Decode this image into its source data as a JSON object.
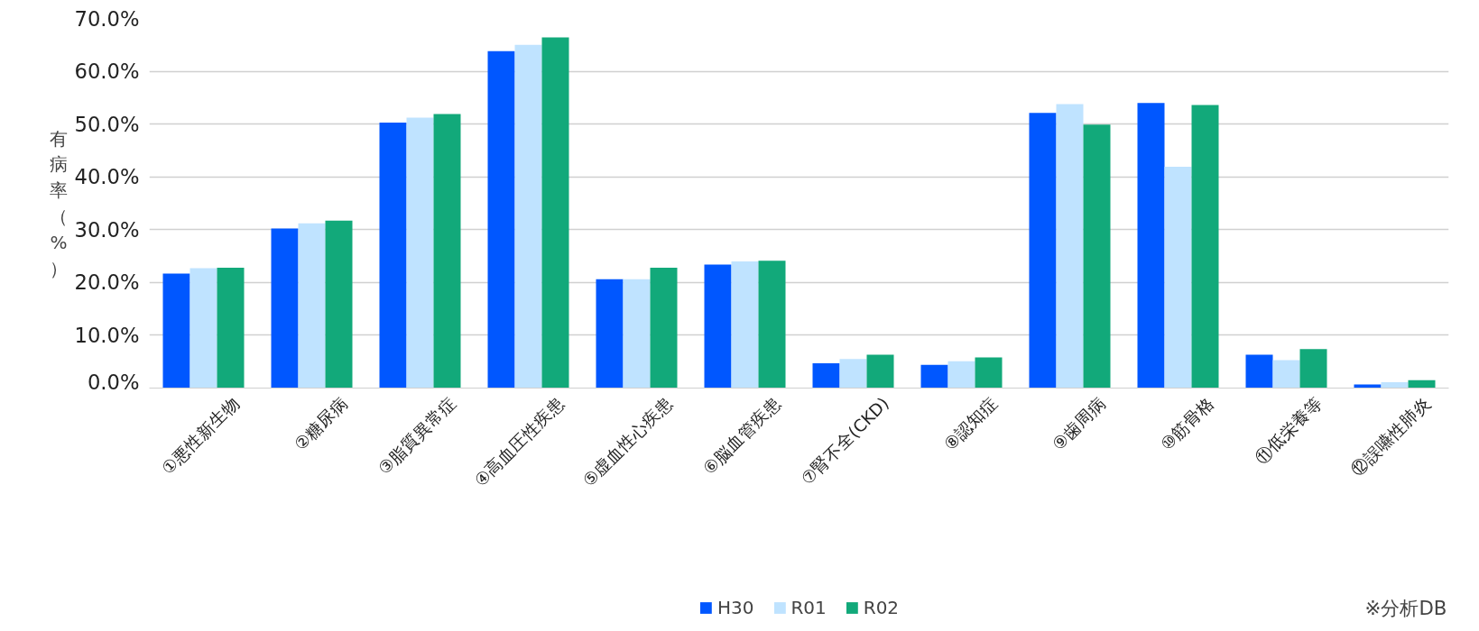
{
  "chart_data": {
    "type": "bar",
    "ylabel": "有病率（%）",
    "categories": [
      "①悪性新生物",
      "②糖尿病",
      "③脂質異常症",
      "④高血圧性疾患",
      "⑤虚血性心疾患",
      "⑥脳血管疾患",
      "⑦腎不全(CKD)",
      "⑧認知症",
      "⑨歯周病",
      "⑩筋骨格",
      "⑪低栄養等",
      "⑫誤嚥性肺炎"
    ],
    "series": [
      {
        "name": "H30",
        "color": "#0057ff",
        "values": [
          21.7,
          30.2,
          50.3,
          63.8,
          20.6,
          23.4,
          4.7,
          4.4,
          52.1,
          54.0,
          6.3,
          0.7
        ]
      },
      {
        "name": "R01",
        "color": "#bfe3ff",
        "values": [
          22.7,
          31.2,
          51.2,
          65.0,
          20.6,
          24.0,
          5.5,
          5.1,
          53.8,
          41.9,
          5.3,
          1.1
        ]
      },
      {
        "name": "R02",
        "color": "#12a97a",
        "values": [
          22.8,
          31.7,
          51.9,
          66.4,
          22.8,
          24.1,
          6.3,
          5.8,
          49.9,
          53.6,
          7.4,
          1.5
        ]
      }
    ],
    "ylim": [
      0,
      70
    ],
    "yticks": [
      {
        "value": 0,
        "label": "0.0%"
      },
      {
        "value": 10,
        "label": "10.0%"
      },
      {
        "value": 20,
        "label": "20.0%"
      },
      {
        "value": 30,
        "label": "30.0%"
      },
      {
        "value": 40,
        "label": "40.0%"
      },
      {
        "value": 50,
        "label": "50.0%"
      },
      {
        "value": 60,
        "label": "60.0%"
      },
      {
        "value": 70,
        "label": "70.0%"
      }
    ],
    "grid": "y",
    "legend": "bottom",
    "annotations": [
      "※分析DB"
    ]
  }
}
